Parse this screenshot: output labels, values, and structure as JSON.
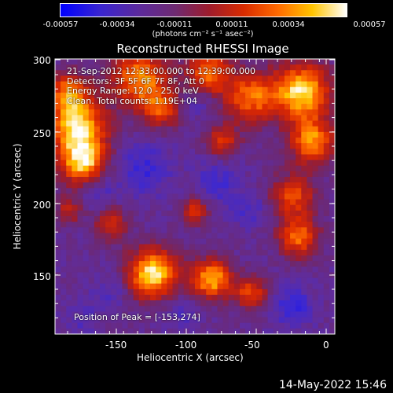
{
  "colorbar": {
    "ticks": [
      "-0.00057",
      "-0.00034",
      "-0.00011",
      "0.00011",
      "0.00034",
      "0.00057"
    ],
    "units": "(photons cm⁻² s⁻¹ asec⁻²)"
  },
  "title": "Reconstructed RHESSI Image",
  "annotations": [
    "21-Sep-2012 12:33:00.000 to 12:39:00.000",
    "Detectors: 3F 5F 6F 7F 8F, Att 0",
    "Energy Range: 12.0 - 25.0 keV",
    "Clean. Total counts: 1.19E+04"
  ],
  "peak_text": "Position of Peak = [-153,274]",
  "axes": {
    "xlabel": "Heliocentric X (arcsec)",
    "ylabel": "Heliocentric Y (arcsec)",
    "xticks": [
      "-150",
      "-100",
      "-50",
      "0"
    ],
    "yticks": [
      "300",
      "250",
      "200",
      "150"
    ]
  },
  "timestamp": "14-May-2022 15:46",
  "colors": {
    "low": "#0000ff",
    "mid": "#6e2a72",
    "high": "#ffffff"
  }
}
